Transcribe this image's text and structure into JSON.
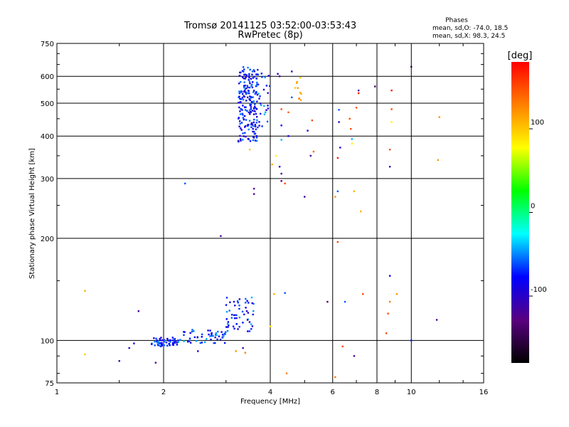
{
  "chart_data": {
    "type": "scatter",
    "title": "Tromsø 20141125 03:52:00-03:53:43",
    "subtitle": "RwPretec (8p)",
    "stats": {
      "heading": "Phases",
      "line_o": "mean, sd,O: -74.0, 18.5",
      "line_x": "mean, sd,X:  98.3, 24.5"
    },
    "xlabel": "Frequency [MHz]",
    "ylabel": "Stationary phase Virtual Height [km]",
    "x_scale": "log",
    "y_scale": "log",
    "xlim": [
      1,
      16
    ],
    "ylim": [
      75,
      750
    ],
    "x_ticks": [
      {
        "value": 1,
        "label": "1"
      },
      {
        "value": 2,
        "label": "2"
      },
      {
        "value": 4,
        "label": "4"
      },
      {
        "value": 6,
        "label": "6"
      },
      {
        "value": 8,
        "label": "8"
      },
      {
        "value": 10,
        "label": "10"
      },
      {
        "value": 16,
        "label": "16"
      }
    ],
    "y_ticks": [
      {
        "value": 75,
        "label": "75"
      },
      {
        "value": 100,
        "label": "100"
      },
      {
        "value": 200,
        "label": "200"
      },
      {
        "value": 300,
        "label": "300"
      },
      {
        "value": 400,
        "label": "400"
      },
      {
        "value": 500,
        "label": "500"
      },
      {
        "value": 600,
        "label": "600"
      },
      {
        "value": 750,
        "label": "750"
      }
    ],
    "grid": true,
    "colorbar": {
      "unit": "[deg]",
      "range": [
        -180,
        180
      ],
      "ticks": [
        {
          "value": 100,
          "label": "100"
        },
        {
          "value": 0,
          "label": "0"
        },
        {
          "value": -100,
          "label": "-100"
        }
      ],
      "colors": [
        "#000000",
        "#5a0080",
        "#0000ff",
        "#00ffff",
        "#00ff00",
        "#ffff00",
        "#ff8000",
        "#ff0000"
      ]
    },
    "clusters": [
      {
        "x_range": [
          1.85,
          2.2
        ],
        "y_range": [
          96,
          102
        ],
        "phase_range": [
          -100,
          -50
        ],
        "count": 60
      },
      {
        "x_range": [
          2.2,
          3.0
        ],
        "y_range": [
          98,
          108
        ],
        "phase_range": [
          -100,
          -40
        ],
        "count": 55
      },
      {
        "x_range": [
          3.0,
          3.6
        ],
        "y_range": [
          106,
          135
        ],
        "phase_range": [
          -100,
          -40
        ],
        "count": 55
      },
      {
        "x_range": [
          3.25,
          3.7
        ],
        "y_range": [
          385,
          640
        ],
        "phase_range": [
          -100,
          -50
        ],
        "count": 200
      },
      {
        "x_range": [
          3.7,
          4.0
        ],
        "y_range": [
          420,
          620
        ],
        "phase_range": [
          -100,
          -40
        ],
        "count": 25
      },
      {
        "x_range": [
          4.7,
          4.9
        ],
        "y_range": [
          510,
          600
        ],
        "phase_range": [
          90,
          130
        ],
        "count": 10
      }
    ],
    "points": [
      {
        "x": 1.2,
        "y": 140,
        "phase": 110
      },
      {
        "x": 1.2,
        "y": 91,
        "phase": 100
      },
      {
        "x": 1.5,
        "y": 87,
        "phase": -110
      },
      {
        "x": 1.6,
        "y": 95,
        "phase": -100
      },
      {
        "x": 1.65,
        "y": 98,
        "phase": -90
      },
      {
        "x": 1.7,
        "y": 122,
        "phase": -120
      },
      {
        "x": 1.9,
        "y": 86,
        "phase": -120
      },
      {
        "x": 2.3,
        "y": 290,
        "phase": -60
      },
      {
        "x": 2.5,
        "y": 93,
        "phase": -90
      },
      {
        "x": 2.9,
        "y": 203,
        "phase": -120
      },
      {
        "x": 3.2,
        "y": 93,
        "phase": 120
      },
      {
        "x": 3.35,
        "y": 95,
        "phase": -110
      },
      {
        "x": 3.4,
        "y": 92,
        "phase": 130
      },
      {
        "x": 3.45,
        "y": 115,
        "phase": -100
      },
      {
        "x": 3.6,
        "y": 270,
        "phase": -120
      },
      {
        "x": 3.6,
        "y": 280,
        "phase": -120
      },
      {
        "x": 3.5,
        "y": 365,
        "phase": 100
      },
      {
        "x": 4.0,
        "y": 110,
        "phase": 90
      },
      {
        "x": 4.1,
        "y": 137,
        "phase": 110
      },
      {
        "x": 4.05,
        "y": 330,
        "phase": 110
      },
      {
        "x": 4.15,
        "y": 350,
        "phase": 80
      },
      {
        "x": 4.25,
        "y": 325,
        "phase": -110
      },
      {
        "x": 4.3,
        "y": 310,
        "phase": -120
      },
      {
        "x": 4.3,
        "y": 295,
        "phase": -130
      },
      {
        "x": 4.4,
        "y": 290,
        "phase": 150
      },
      {
        "x": 4.4,
        "y": 138,
        "phase": -60
      },
      {
        "x": 4.45,
        "y": 80,
        "phase": 130
      },
      {
        "x": 4.5,
        "y": 400,
        "phase": -90
      },
      {
        "x": 4.5,
        "y": 470,
        "phase": 140
      },
      {
        "x": 4.6,
        "y": 520,
        "phase": -60
      },
      {
        "x": 4.6,
        "y": 620,
        "phase": -100
      },
      {
        "x": 4.2,
        "y": 610,
        "phase": -100
      },
      {
        "x": 4.25,
        "y": 600,
        "phase": -130
      },
      {
        "x": 4.3,
        "y": 390,
        "phase": -40
      },
      {
        "x": 4.3,
        "y": 430,
        "phase": -80
      },
      {
        "x": 4.3,
        "y": 480,
        "phase": 150
      },
      {
        "x": 5.0,
        "y": 265,
        "phase": -110
      },
      {
        "x": 5.1,
        "y": 415,
        "phase": -100
      },
      {
        "x": 5.2,
        "y": 350,
        "phase": -120
      },
      {
        "x": 5.25,
        "y": 445,
        "phase": 150
      },
      {
        "x": 5.3,
        "y": 360,
        "phase": 140
      },
      {
        "x": 5.8,
        "y": 130,
        "phase": -140
      },
      {
        "x": 6.1,
        "y": 78,
        "phase": 130
      },
      {
        "x": 6.1,
        "y": 265,
        "phase": 120
      },
      {
        "x": 6.2,
        "y": 275,
        "phase": -60
      },
      {
        "x": 6.25,
        "y": 440,
        "phase": -100
      },
      {
        "x": 6.25,
        "y": 478,
        "phase": -60
      },
      {
        "x": 6.2,
        "y": 345,
        "phase": 170
      },
      {
        "x": 6.3,
        "y": 370,
        "phase": -90
      },
      {
        "x": 6.2,
        "y": 195,
        "phase": 150
      },
      {
        "x": 6.4,
        "y": 96,
        "phase": 150
      },
      {
        "x": 6.5,
        "y": 130,
        "phase": -60
      },
      {
        "x": 6.7,
        "y": 450,
        "phase": 150
      },
      {
        "x": 6.75,
        "y": 420,
        "phase": 150
      },
      {
        "x": 6.8,
        "y": 380,
        "phase": 80
      },
      {
        "x": 6.8,
        "y": 392,
        "phase": -40
      },
      {
        "x": 6.9,
        "y": 275,
        "phase": 110
      },
      {
        "x": 6.9,
        "y": 90,
        "phase": -120
      },
      {
        "x": 7.0,
        "y": 485,
        "phase": 150
      },
      {
        "x": 7.1,
        "y": 535,
        "phase": 170
      },
      {
        "x": 7.1,
        "y": 545,
        "phase": -120
      },
      {
        "x": 7.2,
        "y": 240,
        "phase": 110
      },
      {
        "x": 7.3,
        "y": 137,
        "phase": 150
      },
      {
        "x": 7.9,
        "y": 560,
        "phase": -140
      },
      {
        "x": 8.5,
        "y": 105,
        "phase": 150
      },
      {
        "x": 8.6,
        "y": 120,
        "phase": 150
      },
      {
        "x": 8.7,
        "y": 130,
        "phase": 130
      },
      {
        "x": 8.7,
        "y": 155,
        "phase": -80
      },
      {
        "x": 8.7,
        "y": 325,
        "phase": -110
      },
      {
        "x": 8.7,
        "y": 365,
        "phase": 150
      },
      {
        "x": 8.8,
        "y": 440,
        "phase": 80
      },
      {
        "x": 8.8,
        "y": 480,
        "phase": 150
      },
      {
        "x": 8.8,
        "y": 545,
        "phase": 170
      },
      {
        "x": 9.1,
        "y": 137,
        "phase": 120
      },
      {
        "x": 10.0,
        "y": 100,
        "phase": -70
      },
      {
        "x": 10.0,
        "y": 640,
        "phase": -150
      },
      {
        "x": 11.8,
        "y": 115,
        "phase": -120
      },
      {
        "x": 11.9,
        "y": 340,
        "phase": 120
      },
      {
        "x": 12.0,
        "y": 455,
        "phase": 120
      }
    ]
  }
}
